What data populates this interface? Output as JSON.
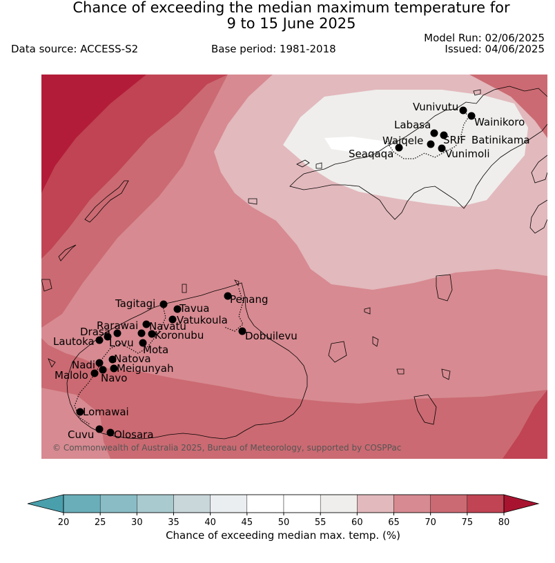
{
  "header": {
    "title_line1": "Chance of exceeding the median maximum temperature for",
    "title_line2": "9 to 15 June 2025",
    "data_source": "Data source: ACCESS-S2",
    "base_period": "Base period: 1981-2018",
    "model_run": "Model Run: 02/06/2025",
    "issued": "Issued: 04/06/2025"
  },
  "map": {
    "copyright": "© Commonwealth of Australia 2025, Bureau of Meteorology, supported by COSPPac",
    "stations": [
      {
        "id": "vunivutu",
        "name": "Vunivutu"
      },
      {
        "id": "wainikoro",
        "name": "Wainikoro"
      },
      {
        "id": "labasa",
        "name": "Labasa"
      },
      {
        "id": "waiqele",
        "name": "Waiqele"
      },
      {
        "id": "srif",
        "name": "SRIF"
      },
      {
        "id": "batinikama",
        "name": "Batinikama"
      },
      {
        "id": "seaqaqa",
        "name": "Seaqaqa"
      },
      {
        "id": "vunimoli",
        "name": "Vunimoli"
      },
      {
        "id": "penang",
        "name": "Penang"
      },
      {
        "id": "tagitagi",
        "name": "Tagitagi"
      },
      {
        "id": "tavua",
        "name": "Tavua"
      },
      {
        "id": "vatukoula",
        "name": "Vatukoula"
      },
      {
        "id": "rarawai",
        "name": "Rarawai"
      },
      {
        "id": "navatu",
        "name": "Navatu"
      },
      {
        "id": "drasa",
        "name": "Drasa"
      },
      {
        "id": "koronubu",
        "name": "Koronubu"
      },
      {
        "id": "lautoka",
        "name": "Lautoka"
      },
      {
        "id": "lovu",
        "name": "Lovu"
      },
      {
        "id": "mota",
        "name": "Mota"
      },
      {
        "id": "dobuilevu",
        "name": "Dobuilevu"
      },
      {
        "id": "natova",
        "name": "Natova"
      },
      {
        "id": "nadi",
        "name": "Nadi"
      },
      {
        "id": "meigunyah",
        "name": "Meigunyah"
      },
      {
        "id": "malolo",
        "name": "Malolo"
      },
      {
        "id": "navo",
        "name": "Navo"
      },
      {
        "id": "lomawai",
        "name": "Lomawai"
      },
      {
        "id": "cuvu",
        "name": "Cuvu"
      },
      {
        "id": "olosara",
        "name": "Olosara"
      }
    ]
  },
  "colorbar": {
    "label": "Chance of exceeding median max. temp. (%)",
    "ticks": [
      "20",
      "25",
      "30",
      "35",
      "40",
      "45",
      "50",
      "55",
      "60",
      "65",
      "70",
      "75",
      "80"
    ],
    "colors": {
      "below": "#4a9fac",
      "bins": [
        "#6aaeba",
        "#89bcc5",
        "#a9cacf",
        "#c9d7db",
        "#ebeef0",
        "#ffffff",
        "#ffffff",
        "#efeeec",
        "#e2b9bd",
        "#d78a91",
        "#cb6a72",
        "#c04453"
      ],
      "above": "#a8142f"
    }
  }
}
